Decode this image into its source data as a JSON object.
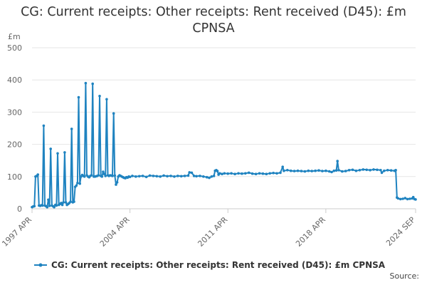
{
  "chart_data": {
    "type": "line",
    "title": "CG: Current receipts: Other receipts: Rent received (D45): £m CPNSA",
    "ylabel": "£m",
    "xlabel": "",
    "ylim": [
      0,
      500
    ],
    "yticks": [
      0,
      100,
      200,
      300,
      400,
      500
    ],
    "xlim": [
      "1997-04",
      "2024-09"
    ],
    "xticks": [
      "1997 APR",
      "2004 APR",
      "2011 APR",
      "2018 APR",
      "2024 SEP"
    ],
    "grid": "horizontal",
    "legend_position": "bottom",
    "series": [
      {
        "name": "CG: Current receipts: Other receipts: Rent received (D45): £m CPNSA",
        "color": "#1f83c0",
        "points": [
          [
            "1997-04",
            5
          ],
          [
            "1997-05",
            7
          ],
          [
            "1997-06",
            8
          ],
          [
            "1997-07",
            100
          ],
          [
            "1997-08",
            102
          ],
          [
            "1997-09",
            106
          ],
          [
            "1997-10",
            10
          ],
          [
            "1997-11",
            9
          ],
          [
            "1997-12",
            11
          ],
          [
            "1998-01",
            10
          ],
          [
            "1998-02",
            258
          ],
          [
            "1998-03",
            10
          ],
          [
            "1998-04",
            8
          ],
          [
            "1998-05",
            5
          ],
          [
            "1998-06",
            28
          ],
          [
            "1998-07",
            9
          ],
          [
            "1998-08",
            186
          ],
          [
            "1998-09",
            10
          ],
          [
            "1998-10",
            8
          ],
          [
            "1998-11",
            5
          ],
          [
            "1998-12",
            12
          ],
          [
            "1999-01",
            10
          ],
          [
            "1999-02",
            172
          ],
          [
            "1999-03",
            12
          ],
          [
            "1999-04",
            15
          ],
          [
            "1999-05",
            18
          ],
          [
            "1999-06",
            12
          ],
          [
            "1999-07",
            20
          ],
          [
            "1999-08",
            175
          ],
          [
            "1999-09",
            20
          ],
          [
            "1999-10",
            12
          ],
          [
            "1999-11",
            15
          ],
          [
            "1999-12",
            18
          ],
          [
            "2000-01",
            22
          ],
          [
            "2000-02",
            248
          ],
          [
            "2000-03",
            20
          ],
          [
            "2000-04",
            22
          ],
          [
            "2000-05",
            68
          ],
          [
            "2000-06",
            72
          ],
          [
            "2000-07",
            80
          ],
          [
            "2000-08",
            346
          ],
          [
            "2000-09",
            78
          ],
          [
            "2000-10",
            100
          ],
          [
            "2000-11",
            105
          ],
          [
            "2000-12",
            102
          ],
          [
            "2001-01",
            100
          ],
          [
            "2001-02",
            390
          ],
          [
            "2001-03",
            104
          ],
          [
            "2001-04",
            100
          ],
          [
            "2001-05",
            98
          ],
          [
            "2001-06",
            102
          ],
          [
            "2001-07",
            104
          ],
          [
            "2001-08",
            388
          ],
          [
            "2001-09",
            100
          ],
          [
            "2001-10",
            100
          ],
          [
            "2001-11",
            101
          ],
          [
            "2001-12",
            102
          ],
          [
            "2002-01",
            104
          ],
          [
            "2002-02",
            350
          ],
          [
            "2002-03",
            102
          ],
          [
            "2002-04",
            100
          ],
          [
            "2002-05",
            115
          ],
          [
            "2002-06",
            108
          ],
          [
            "2002-07",
            102
          ],
          [
            "2002-08",
            340
          ],
          [
            "2002-09",
            104
          ],
          [
            "2002-10",
            102
          ],
          [
            "2002-11",
            104
          ],
          [
            "2002-12",
            103
          ],
          [
            "2003-01",
            102
          ],
          [
            "2003-02",
            296
          ],
          [
            "2003-03",
            103
          ],
          [
            "2003-04",
            75
          ],
          [
            "2003-05",
            82
          ],
          [
            "2003-06",
            100
          ],
          [
            "2003-07",
            104
          ],
          [
            "2003-08",
            102
          ],
          [
            "2003-09",
            100
          ],
          [
            "2003-10",
            98
          ],
          [
            "2003-11",
            96
          ],
          [
            "2003-12",
            95
          ],
          [
            "2004-01",
            98
          ],
          [
            "2004-02",
            97
          ],
          [
            "2004-03",
            100
          ],
          [
            "2004-04",
            99
          ],
          [
            "2004-06",
            102
          ],
          [
            "2004-09",
            100
          ],
          [
            "2004-12",
            101
          ],
          [
            "2005-03",
            102
          ],
          [
            "2005-06",
            99
          ],
          [
            "2005-09",
            103
          ],
          [
            "2005-12",
            102
          ],
          [
            "2006-03",
            101
          ],
          [
            "2006-06",
            100
          ],
          [
            "2006-09",
            103
          ],
          [
            "2006-12",
            101
          ],
          [
            "2007-03",
            102
          ],
          [
            "2007-06",
            100
          ],
          [
            "2007-09",
            102
          ],
          [
            "2007-12",
            101
          ],
          [
            "2008-03",
            102
          ],
          [
            "2008-06",
            103
          ],
          [
            "2008-07",
            113
          ],
          [
            "2008-09",
            112
          ],
          [
            "2008-11",
            102
          ],
          [
            "2009-01",
            101
          ],
          [
            "2009-04",
            102
          ],
          [
            "2009-07",
            100
          ],
          [
            "2009-10",
            98
          ],
          [
            "2009-12",
            96
          ],
          [
            "2010-02",
            100
          ],
          [
            "2010-04",
            102
          ],
          [
            "2010-05",
            118
          ],
          [
            "2010-06",
            120
          ],
          [
            "2010-07",
            117
          ],
          [
            "2010-08",
            106
          ],
          [
            "2010-09",
            110
          ],
          [
            "2010-11",
            108
          ],
          [
            "2011-01",
            110
          ],
          [
            "2011-04",
            109
          ],
          [
            "2011-07",
            110
          ],
          [
            "2011-10",
            108
          ],
          [
            "2012-01",
            110
          ],
          [
            "2012-04",
            109
          ],
          [
            "2012-07",
            110
          ],
          [
            "2012-10",
            112
          ],
          [
            "2013-01",
            109
          ],
          [
            "2013-04",
            108
          ],
          [
            "2013-07",
            110
          ],
          [
            "2013-10",
            109
          ],
          [
            "2014-01",
            108
          ],
          [
            "2014-04",
            110
          ],
          [
            "2014-07",
            111
          ],
          [
            "2014-10",
            110
          ],
          [
            "2015-01",
            112
          ],
          [
            "2015-03",
            130
          ],
          [
            "2015-04",
            118
          ],
          [
            "2015-07",
            120
          ],
          [
            "2015-10",
            118
          ],
          [
            "2016-01",
            117
          ],
          [
            "2016-04",
            118
          ],
          [
            "2016-07",
            117
          ],
          [
            "2016-10",
            116
          ],
          [
            "2017-01",
            118
          ],
          [
            "2017-04",
            117
          ],
          [
            "2017-07",
            118
          ],
          [
            "2017-10",
            119
          ],
          [
            "2018-01",
            117
          ],
          [
            "2018-04",
            118
          ],
          [
            "2018-07",
            116
          ],
          [
            "2018-09",
            114
          ],
          [
            "2018-11",
            118
          ],
          [
            "2019-01",
            119
          ],
          [
            "2019-02",
            148
          ],
          [
            "2019-03",
            120
          ],
          [
            "2019-06",
            116
          ],
          [
            "2019-09",
            117
          ],
          [
            "2019-12",
            120
          ],
          [
            "2020-03",
            121
          ],
          [
            "2020-06",
            118
          ],
          [
            "2020-09",
            120
          ],
          [
            "2020-12",
            122
          ],
          [
            "2021-03",
            121
          ],
          [
            "2021-06",
            120
          ],
          [
            "2021-09",
            122
          ],
          [
            "2021-12",
            121
          ],
          [
            "2022-03",
            120
          ],
          [
            "2022-04",
            112
          ],
          [
            "2022-06",
            118
          ],
          [
            "2022-09",
            120
          ],
          [
            "2022-12",
            119
          ],
          [
            "2023-03",
            118
          ],
          [
            "2023-04",
            120
          ],
          [
            "2023-05",
            35
          ],
          [
            "2023-06",
            32
          ],
          [
            "2023-08",
            30
          ],
          [
            "2023-10",
            31
          ],
          [
            "2023-12",
            33
          ],
          [
            "2024-02",
            30
          ],
          [
            "2024-04",
            31
          ],
          [
            "2024-06",
            32
          ],
          [
            "2024-07",
            36
          ],
          [
            "2024-08",
            30
          ],
          [
            "2024-09",
            29
          ]
        ]
      }
    ],
    "source_label": "Source:"
  }
}
